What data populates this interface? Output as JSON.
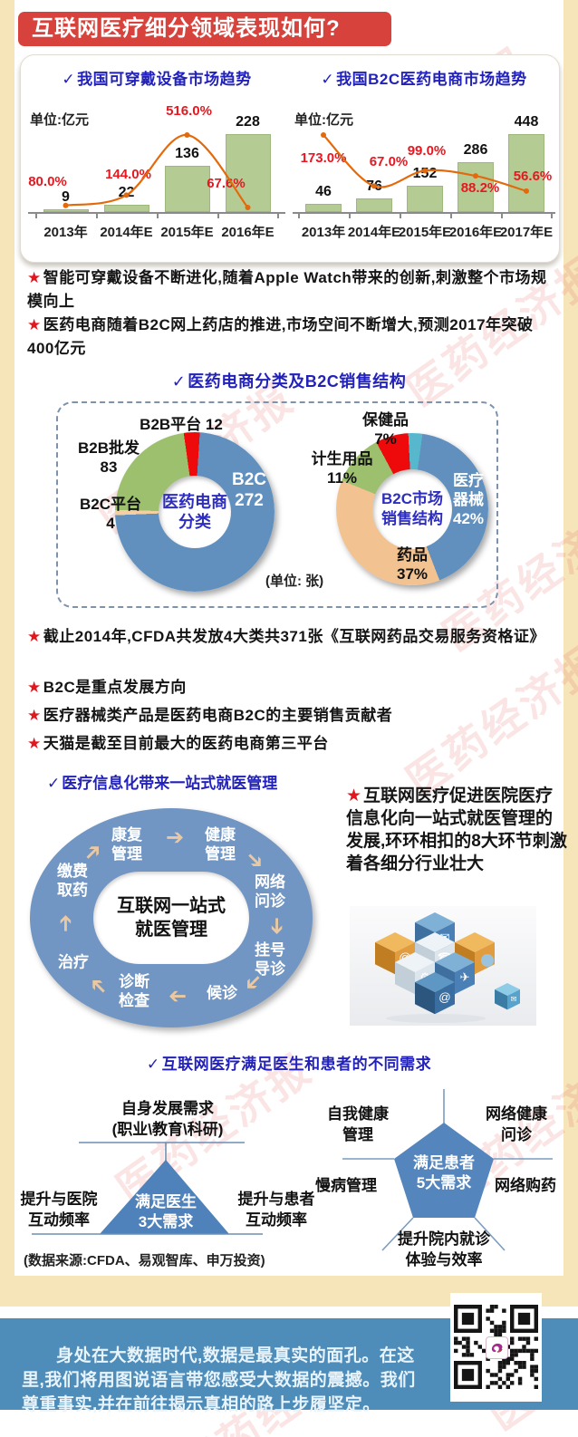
{
  "icons": {
    "check": "✓",
    "star": "★",
    "arrow": "➔"
  },
  "page_title": "互联网医疗细分领域表现如何?",
  "watermark_text": "医药经济报",
  "chart_data": [
    {
      "type": "bar+line",
      "title": "我国可穿戴设备市场趋势",
      "unit": "单位:亿元",
      "categories": [
        "2013年",
        "2014年E",
        "2015年E",
        "2016年E"
      ],
      "series": [
        {
          "name": "市场规模(亿元)",
          "type": "bar",
          "values": [
            9,
            22,
            136,
            228
          ],
          "color": "#b4cc94"
        },
        {
          "name": "增长率",
          "type": "line",
          "values": [
            80.0,
            144.0,
            516.0,
            67.6
          ],
          "labels": [
            "80.0%",
            "144.0%",
            "516.0%",
            "67.6%"
          ],
          "color": "#e4690b",
          "label_color": "#e8171f"
        }
      ],
      "ylim": [
        0,
        250
      ],
      "pct_lim": [
        0,
        520
      ],
      "grid": false,
      "legend": "none"
    },
    {
      "type": "bar+line",
      "title": "我国B2C医药电商市场趋势",
      "unit": "单位:亿元",
      "categories": [
        "2013年",
        "2014年E",
        "2015年E",
        "2016年E",
        "2017年E"
      ],
      "series": [
        {
          "name": "市场规模(亿元)",
          "type": "bar",
          "values": [
            46,
            76,
            152,
            286,
            448
          ],
          "color": "#b4cc94"
        },
        {
          "name": "增长率",
          "type": "line",
          "values": [
            173.0,
            67.0,
            99.0,
            88.2,
            56.6
          ],
          "labels": [
            "173.0%",
            "67.0%",
            "99.0%",
            "88.2%",
            "56.6%"
          ],
          "color": "#e4690b",
          "label_color": "#e8171f"
        }
      ],
      "ylim": [
        0,
        480
      ],
      "pct_lim": [
        0,
        180
      ],
      "grid": false,
      "legend": "none"
    },
    {
      "type": "donut",
      "name": "医药电商分类",
      "center_label_lines": [
        "医药电商",
        "分类"
      ],
      "unit": "张",
      "start_angle": -8,
      "slices": [
        {
          "label": "B2B平台",
          "value": 12,
          "color": "#ee0a0a",
          "callout_lines": [
            "B2B平台 12"
          ]
        },
        {
          "label": "B2C",
          "value": 272,
          "color": "#6190bf",
          "callout_lines": [
            "B2C",
            "272"
          ]
        },
        {
          "label": "B2C平台",
          "value": 4,
          "color": "#f3cfa2",
          "callout_lines": [
            "B2C平台",
            "4"
          ]
        },
        {
          "label": "B2B批发",
          "value": 83,
          "color": "#9cc06e",
          "callout_lines": [
            "B2B批发",
            "83"
          ]
        }
      ]
    },
    {
      "type": "donut",
      "name": "B2C市场销售结构",
      "center_label_lines": [
        "B2C市场",
        "销售结构"
      ],
      "start_angle": -3,
      "slices": [
        {
          "label": "",
          "value": 3,
          "color": "#56b7cd",
          "callout_lines": []
        },
        {
          "label": "医疗器械",
          "value": 42,
          "color": "#6190bf",
          "callout_lines": [
            "医疗",
            "器械",
            "42%"
          ]
        },
        {
          "label": "药品",
          "value": 37,
          "color": "#f2c391",
          "callout_lines": [
            "药品",
            "37%"
          ]
        },
        {
          "label": "计生用品",
          "value": 11,
          "color": "#9cc06e",
          "callout_lines": [
            "计生用品",
            "11%"
          ]
        },
        {
          "label": "保健品",
          "value": 7,
          "color": "#ee0a0a",
          "callout_lines": [
            "保健品",
            "7%"
          ]
        }
      ]
    }
  ],
  "sections": {
    "donut_heading": "医药电商分类及B2C销售结构",
    "donut_unit_note": "(单位: 张)",
    "flow_heading": "医疗信息化带来一站式就医管理",
    "needs_heading": "互联网医疗满足医生和患者的不同需求"
  },
  "insights_top": [
    "智能可穿戴设备不断进化,随着Apple Watch带来的创新,刺激整个市场规模向上",
    "医药电商随着B2C网上药店的推进,市场空间不断增大,预测2017年突破400亿元"
  ],
  "insights_mid": [
    "截止2014年,CFDA共发放4大类共371张《互联网药品交易服务资格证》",
    "B2C是重点发展方向",
    "医疗器械类产品是医药电商B2C的主要销售贡献者",
    "天猫是截至目前最大的医药电商第三平台"
  ],
  "flow": {
    "center_lines": [
      "互联网一站式",
      "就医管理"
    ],
    "steps": [
      "康复管理",
      "健康管理",
      "网络问诊",
      "挂号导诊",
      "候诊",
      "诊断检查",
      "治疗",
      "缴费取药"
    ],
    "note": "互联网医疗促进医院医疗信息化向一站式就医管理的发展,环环相扣的8大环节刺激着各细分行业壮大"
  },
  "needs": {
    "doctor": {
      "center_lines": [
        "满足医生",
        "3大需求"
      ],
      "top_lines": [
        "自身发展需求",
        "(职业\\教育\\科研)"
      ],
      "left_lines": [
        "提升与医院",
        "互动频率"
      ],
      "right_lines": [
        "提升与患者",
        "互动频率"
      ]
    },
    "patient": {
      "center_lines": [
        "满足患者",
        "5大需求"
      ],
      "top_left_lines": [
        "自我健康",
        "管理"
      ],
      "top_right_lines": [
        "网络健康",
        "问诊"
      ],
      "left_label": "慢病管理",
      "right_label": "网络购药",
      "bottom_lines": [
        "提升院内就诊",
        "体验与效率"
      ]
    }
  },
  "source_note": "(数据来源:CFDA、易观智库、申万投资)",
  "footer": {
    "text": "身处在大数据时代,数据是最真实的面孔。在这里,我们将用图说语言带您感受大数据的震撼。我们尊重事实,并在前往揭示真相的路上步履坚定。"
  }
}
